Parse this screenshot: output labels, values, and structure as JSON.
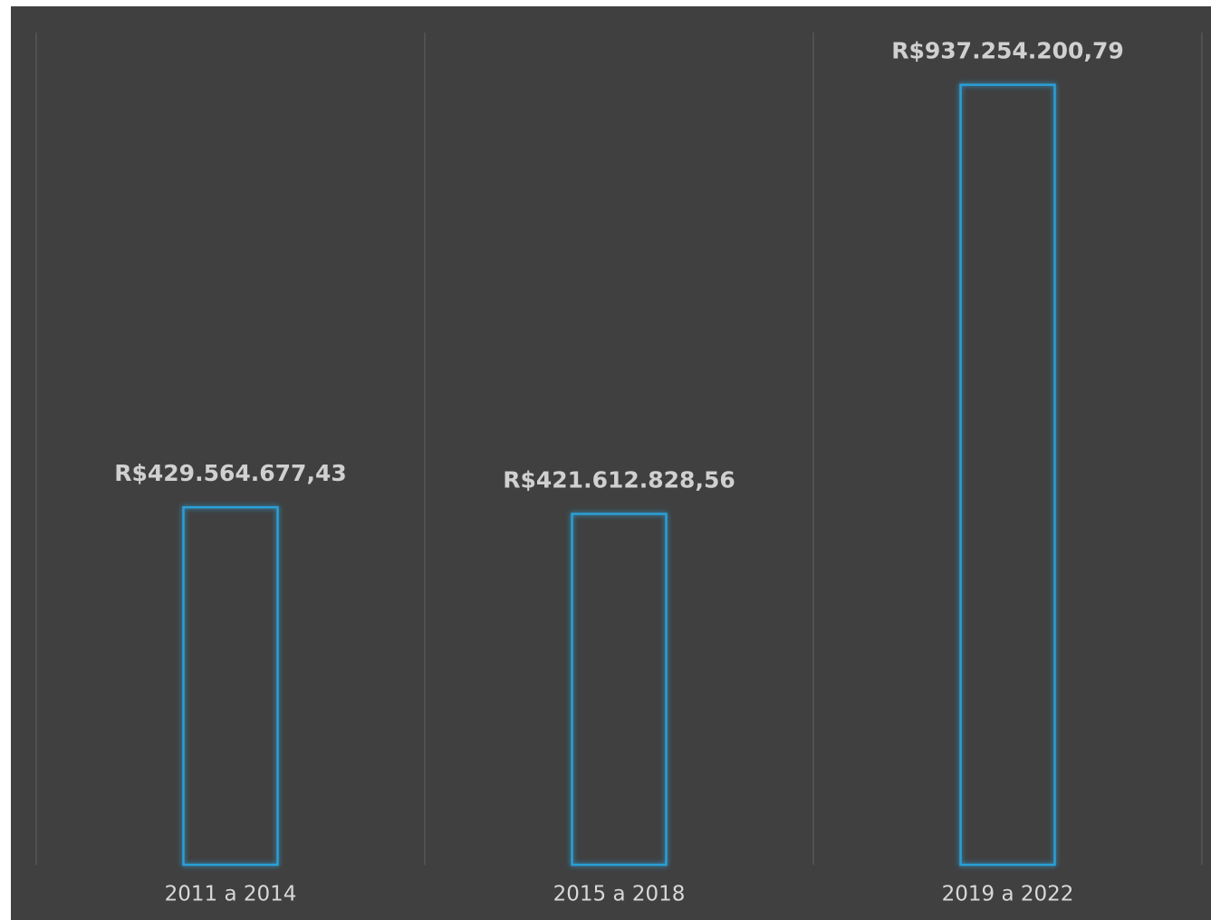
{
  "chart_data": {
    "type": "bar",
    "categories": [
      "2011 a 2014",
      "2015 a 2018",
      "2019 a 2022"
    ],
    "values": [
      429564677.43,
      421612828.56,
      937254200.79
    ],
    "value_labels": [
      "R$429.564.677,43",
      "R$421.612.828,56",
      "R$937.254.200,79"
    ],
    "color": "#2a9fd6",
    "ylim": [
      0,
      1000000000
    ]
  }
}
